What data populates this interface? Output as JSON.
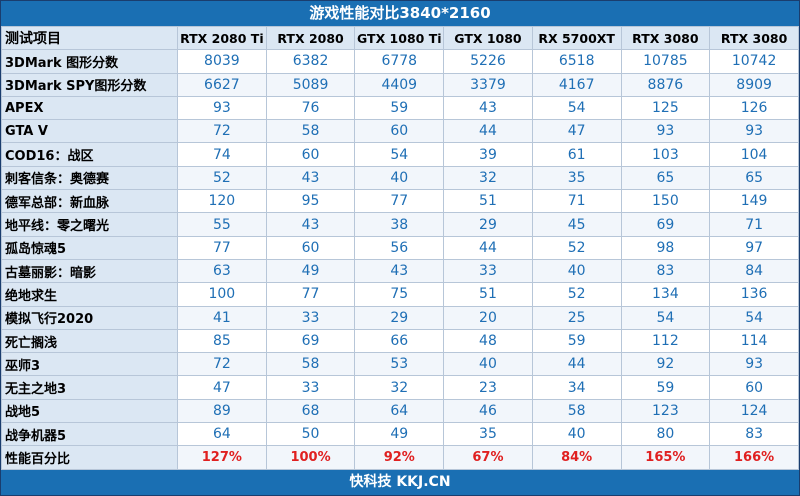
{
  "title": "游戏性能对比3840*2160",
  "header": {
    "first": "测试项目",
    "columns": [
      "RTX 2080 Ti",
      "RTX 2080",
      "GTX 1080 Ti",
      "GTX 1080",
      "RX 5700XT",
      "RTX 3080",
      "RTX 3080"
    ]
  },
  "rows": [
    {
      "label": "3DMark 图形分数",
      "values": [
        "8039",
        "6382",
        "6778",
        "5226",
        "6518",
        "10785",
        "10742"
      ]
    },
    {
      "label": "3DMark SPY图形分数",
      "values": [
        "6627",
        "5089",
        "4409",
        "3379",
        "4167",
        "8876",
        "8909"
      ]
    },
    {
      "label": "APEX",
      "values": [
        "93",
        "76",
        "59",
        "43",
        "54",
        "125",
        "126"
      ]
    },
    {
      "label": "GTA V",
      "values": [
        "72",
        "58",
        "60",
        "44",
        "47",
        "93",
        "93"
      ]
    },
    {
      "label": "COD16：战区",
      "values": [
        "74",
        "60",
        "54",
        "39",
        "61",
        "103",
        "104"
      ]
    },
    {
      "label": "刺客信条：奥德赛",
      "values": [
        "52",
        "43",
        "40",
        "32",
        "35",
        "65",
        "65"
      ]
    },
    {
      "label": "德军总部：新血脉",
      "values": [
        "120",
        "95",
        "77",
        "51",
        "71",
        "150",
        "149"
      ]
    },
    {
      "label": "地平线：零之曙光",
      "values": [
        "55",
        "43",
        "38",
        "29",
        "45",
        "69",
        "71"
      ]
    },
    {
      "label": "孤岛惊魂5",
      "values": [
        "77",
        "60",
        "56",
        "44",
        "52",
        "98",
        "97"
      ]
    },
    {
      "label": "古墓丽影：暗影",
      "values": [
        "63",
        "49",
        "43",
        "33",
        "40",
        "83",
        "84"
      ]
    },
    {
      "label": "绝地求生",
      "values": [
        "100",
        "77",
        "75",
        "51",
        "52",
        "134",
        "136"
      ]
    },
    {
      "label": "模拟飞行2020",
      "values": [
        "41",
        "33",
        "29",
        "20",
        "25",
        "54",
        "54"
      ]
    },
    {
      "label": "死亡搁浅",
      "values": [
        "85",
        "69",
        "66",
        "48",
        "59",
        "112",
        "114"
      ]
    },
    {
      "label": "巫师3",
      "values": [
        "72",
        "58",
        "53",
        "40",
        "44",
        "92",
        "93"
      ]
    },
    {
      "label": "无主之地3",
      "values": [
        "47",
        "33",
        "32",
        "23",
        "34",
        "59",
        "60"
      ]
    },
    {
      "label": "战地5",
      "values": [
        "89",
        "68",
        "64",
        "46",
        "58",
        "123",
        "124"
      ]
    },
    {
      "label": "战争机器5",
      "values": [
        "64",
        "50",
        "49",
        "35",
        "40",
        "80",
        "83"
      ]
    },
    {
      "label": "性能百分比",
      "perf": true,
      "values": [
        "127%",
        "100%",
        "92%",
        "67%",
        "84%",
        "165%",
        "166%"
      ]
    }
  ],
  "footer": "快科技 KKJ.CN",
  "colors": {
    "accent": "#1a6fb3",
    "value": "#1f6fb5",
    "percent": "#e02020",
    "header_bg": "#dbe7f3"
  }
}
